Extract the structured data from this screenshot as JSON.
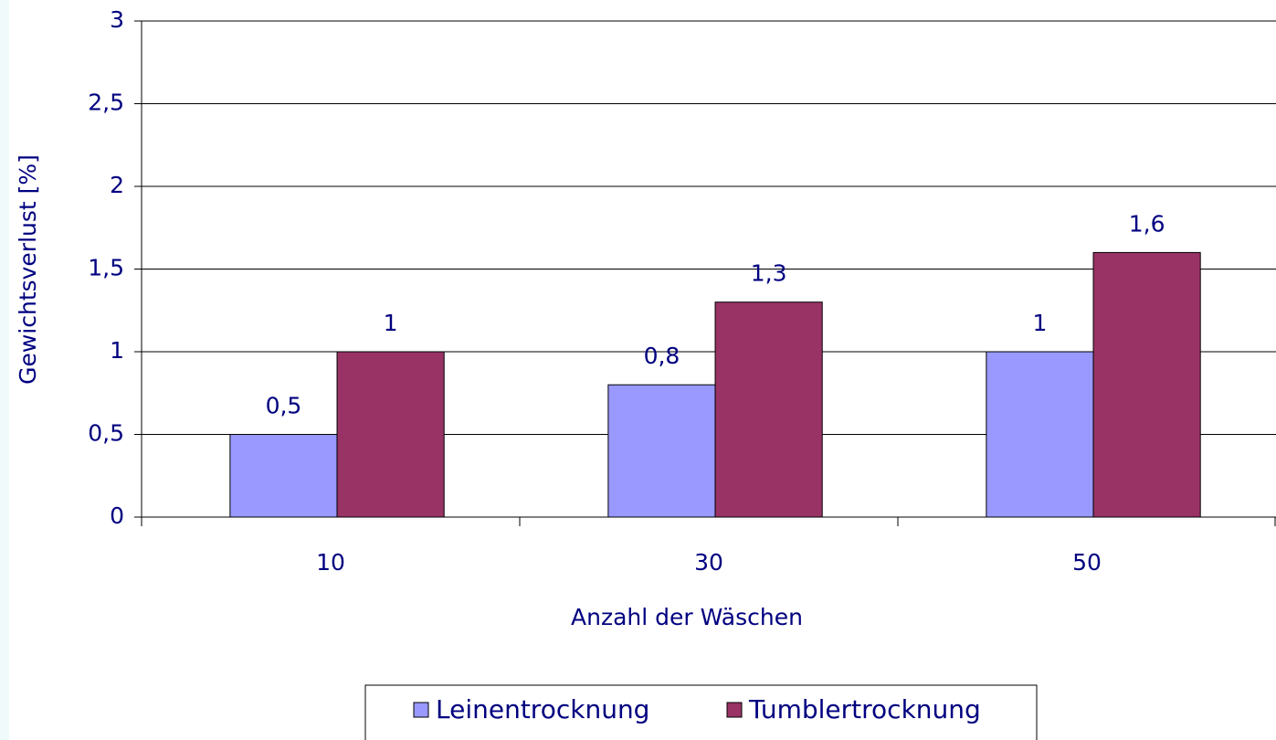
{
  "chart_data": {
    "type": "bar",
    "x_label": "Anzahl der Wäschen",
    "y_label": "Gewichtsverlust [%]",
    "categories": [
      "10",
      "30",
      "50"
    ],
    "series": [
      {
        "name": "Leinentrocknung",
        "color": "#9999ff",
        "values": [
          0.5,
          0.8,
          1
        ],
        "value_labels": [
          "0,5",
          "0,8",
          "1"
        ]
      },
      {
        "name": "Tumblertrocknung",
        "color": "#993366",
        "values": [
          1,
          1.3,
          1.6
        ],
        "value_labels": [
          "1",
          "1,3",
          "1,6"
        ]
      }
    ],
    "ylim": [
      0,
      3
    ],
    "yticks": [
      0,
      {
        "value": 0.5,
        "label": "0,5"
      },
      1,
      {
        "value": 1.5,
        "label": "1,5"
      },
      2,
      {
        "value": 2.5,
        "label": "2,5"
      },
      3
    ],
    "grid": true,
    "legend": "bottom"
  }
}
